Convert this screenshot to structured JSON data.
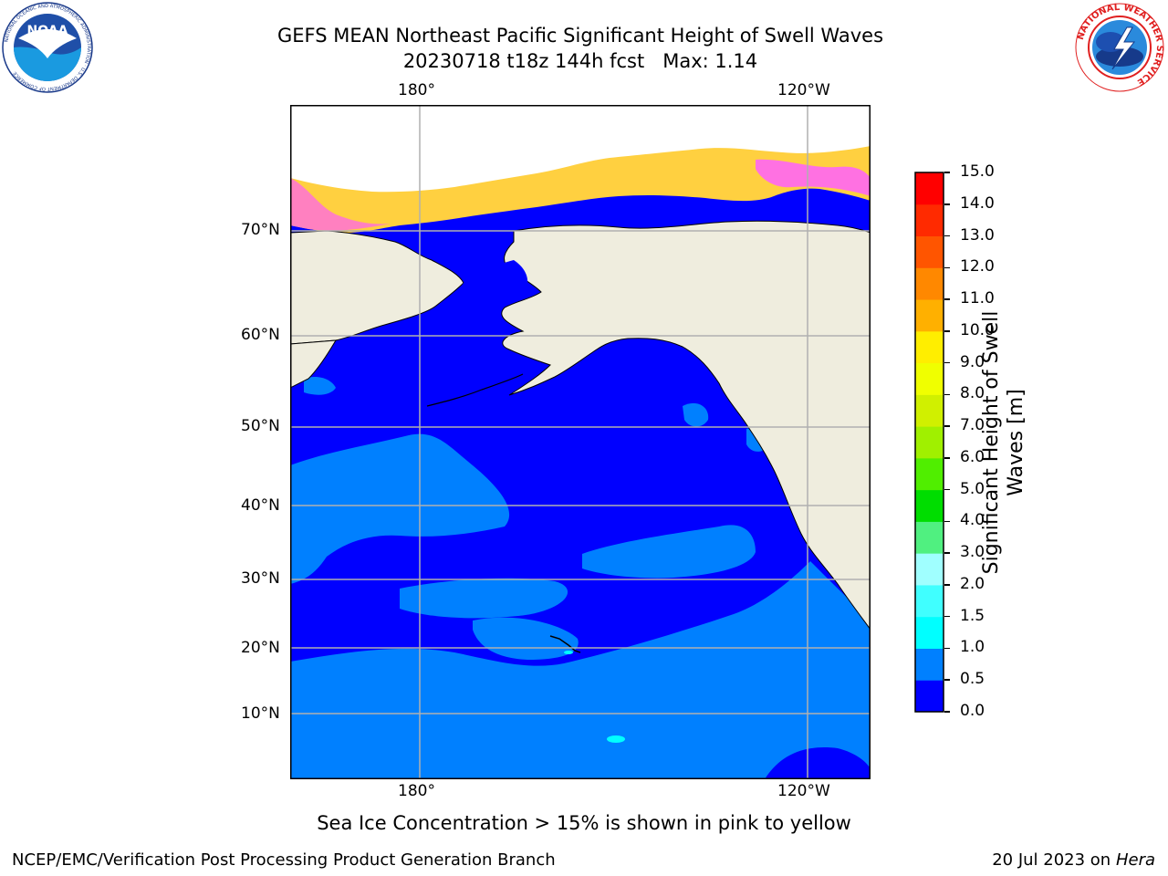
{
  "header": {
    "title_line1": "GEFS MEAN Northeast Pacific Significant Height of Swell Waves",
    "title_line2": "20230718 t18z 144h fcst   Max: 1.14"
  },
  "logos": {
    "left": {
      "text": "NOAA",
      "ring_text": "NATIONAL OCEANIC AND ATMOSPHERIC ADMINISTRATION · U.S. DEPARTMENT OF COMMERCE"
    },
    "right": {
      "ring_text": "NATIONAL WEATHER SERVICE"
    }
  },
  "map": {
    "lon_labels_top": [
      "180°",
      "120°W"
    ],
    "lon_labels_bottom": [
      "180°",
      "120°W"
    ],
    "lat_labels": [
      "70°N",
      "60°N",
      "50°N",
      "40°N",
      "30°N",
      "20°N",
      "10°N"
    ],
    "colors": {
      "ocean_dark": "#0000ff",
      "ocean_light": "#0080ff",
      "land": "#efedde",
      "ice_white": "#ffffff",
      "ice_pink": "#ff40ff",
      "ice_yellow": "#ffd040",
      "cyan": "#00ffff",
      "grid": "#b0b0b0"
    }
  },
  "colorbar": {
    "title_line1": "Significant Height of Swell",
    "title_line2": "Waves [m]",
    "ticks": [
      "0.0",
      "0.5",
      "1.0",
      "1.5",
      "2.0",
      "3.0",
      "4.0",
      "5.0",
      "6.0",
      "7.0",
      "8.0",
      "9.0",
      "10.0",
      "11.0",
      "12.0",
      "13.0",
      "14.0",
      "15.0"
    ],
    "colors": [
      "#0000ff",
      "#0080ff",
      "#00ffff",
      "#40ffff",
      "#a0ffff",
      "#50f080",
      "#00dd00",
      "#50ee00",
      "#a0f000",
      "#d0f000",
      "#f0ff00",
      "#ffee00",
      "#ffb000",
      "#ff8800",
      "#ff5500",
      "#ff2a00",
      "#ff0000"
    ]
  },
  "caption": "Sea Ice Concentration > 15% is shown in pink to yellow",
  "footer": {
    "left": "NCEP/EMC/Verification Post Processing Product Generation Branch",
    "right_date": "20 Jul 2023 on ",
    "right_machine": "Hera"
  }
}
